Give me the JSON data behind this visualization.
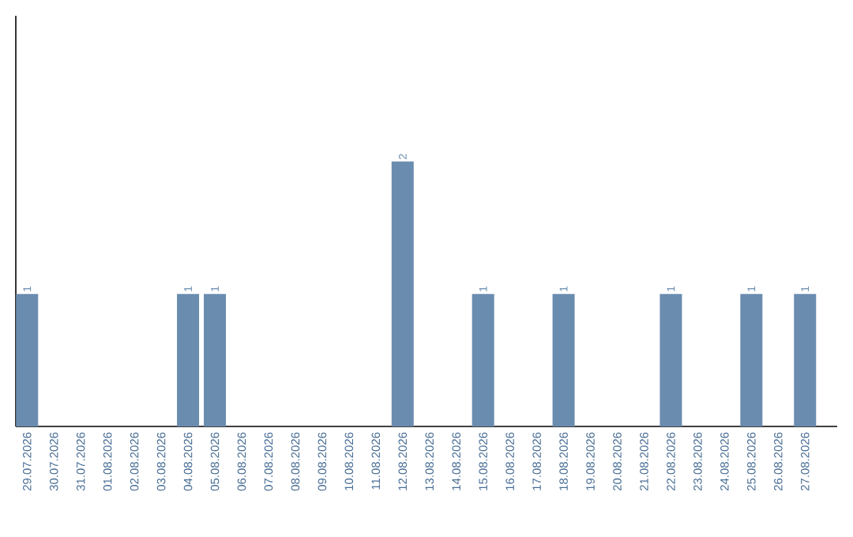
{
  "chart_data": {
    "type": "bar",
    "categories": [
      "29.07.2026",
      "30.07.2026",
      "31.07.2026",
      "01.08.2026",
      "02.08.2026",
      "03.08.2026",
      "04.08.2026",
      "05.08.2026",
      "06.08.2026",
      "07.08.2026",
      "08.08.2026",
      "09.08.2026",
      "10.08.2026",
      "11.08.2026",
      "12.08.2026",
      "13.08.2026",
      "14.08.2026",
      "15.08.2026",
      "16.08.2026",
      "17.08.2026",
      "18.08.2026",
      "19.08.2026",
      "20.08.2026",
      "21.08.2026",
      "22.08.2026",
      "23.08.2026",
      "24.08.2026",
      "25.08.2026",
      "26.08.2026",
      "27.08.2026"
    ],
    "values": [
      1,
      0,
      0,
      0,
      0,
      0,
      1,
      1,
      0,
      0,
      0,
      0,
      0,
      0,
      2,
      0,
      0,
      1,
      0,
      0,
      1,
      0,
      0,
      0,
      1,
      0,
      0,
      1,
      0,
      1
    ],
    "value_labels": [
      "1",
      null,
      null,
      null,
      null,
      null,
      "1",
      "1",
      null,
      null,
      null,
      null,
      null,
      null,
      "2",
      null,
      null,
      "1",
      null,
      null,
      "1",
      null,
      null,
      null,
      "1",
      null,
      null,
      "1",
      null,
      "1"
    ],
    "color": "#6a8caf",
    "ylim": [
      0,
      3.1
    ]
  }
}
